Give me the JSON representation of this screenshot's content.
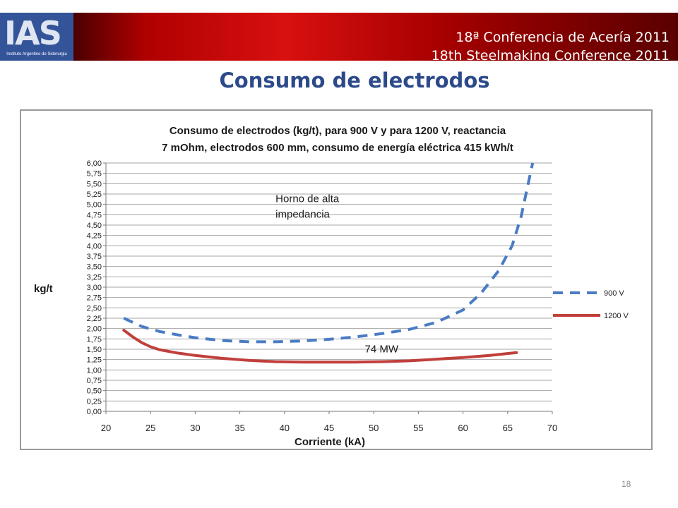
{
  "header": {
    "logo_text": "IAS",
    "logo_subtitle": "Instituto Argentino de Siderurgia",
    "conference_es": "18ª Conferencia de Acería 2011",
    "conference_en": "18th Steelmaking Conference 2011"
  },
  "slide": {
    "title": "Consumo de electrodos",
    "page_number": "18"
  },
  "colors": {
    "banner_red": "#c01010",
    "logo_blue": "#34549a",
    "title_blue": "#2c4a8a",
    "series_900": "#4a7cc4",
    "series_1200": "#c0403c"
  },
  "chart_data": {
    "type": "line",
    "title_line1": "Consumo de electrodos (kg/t), para 900 V y  para 1200 V, reactancia",
    "title_line2": "7 mOhm, electrodos 600 mm, consumo de energía eléctrica 415 kWh/t",
    "xlabel": "Corriente (kA)",
    "ylabel": "kg/t",
    "xlim": [
      20,
      70
    ],
    "ylim": [
      0,
      6
    ],
    "x_ticks": [
      "20",
      "25",
      "30",
      "35",
      "40",
      "45",
      "50",
      "55",
      "60",
      "65",
      "70"
    ],
    "y_ticks": [
      "0,00",
      "0,25",
      "0,50",
      "0,75",
      "1,00",
      "1,25",
      "1,50",
      "1,75",
      "2,00",
      "2,25",
      "2,50",
      "2,75",
      "3,00",
      "3,25",
      "3,50",
      "3,75",
      "4,00",
      "4,25",
      "4,50",
      "4,75",
      "5,00",
      "5,25",
      "5,50",
      "5,75",
      "6,00"
    ],
    "grid": true,
    "legend_position": "right",
    "series": [
      {
        "name": "900 V",
        "style": "dashed",
        "color": "#4a7cc4",
        "x": [
          22,
          24,
          26,
          28,
          30,
          33,
          36,
          39,
          42,
          45,
          48,
          51,
          54,
          57,
          60,
          62,
          64,
          65.5,
          66.5,
          67.2,
          67.8
        ],
        "y": [
          2.25,
          2.05,
          1.93,
          1.85,
          1.78,
          1.71,
          1.68,
          1.68,
          1.7,
          1.74,
          1.8,
          1.88,
          1.98,
          2.15,
          2.45,
          2.85,
          3.4,
          4.0,
          4.7,
          5.4,
          6.0
        ]
      },
      {
        "name": "1200 V",
        "style": "solid",
        "color": "#c0403c",
        "x": [
          22,
          23,
          24,
          25,
          26,
          28,
          30,
          33,
          36,
          39,
          42,
          45,
          48,
          51,
          54,
          57,
          60,
          63,
          66
        ],
        "y": [
          1.96,
          1.8,
          1.66,
          1.56,
          1.49,
          1.41,
          1.35,
          1.28,
          1.23,
          1.2,
          1.19,
          1.19,
          1.19,
          1.2,
          1.22,
          1.26,
          1.3,
          1.35,
          1.42
        ]
      }
    ],
    "annotations": [
      {
        "text": "Horno de alta impedancia",
        "x": 39,
        "y": 5.05
      },
      {
        "text": "74 MW",
        "x": 49,
        "y": 1.42
      }
    ]
  }
}
